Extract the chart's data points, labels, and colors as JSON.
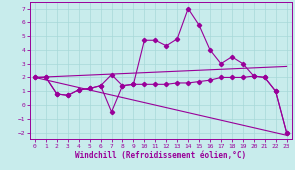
{
  "xlabel": "Windchill (Refroidissement éolien,°C)",
  "background_color": "#c8ecec",
  "grid_color": "#a8d8d8",
  "line_color": "#990099",
  "xlim": [
    -0.5,
    23.5
  ],
  "ylim": [
    -2.5,
    7.5
  ],
  "xticks": [
    0,
    1,
    2,
    3,
    4,
    5,
    6,
    7,
    8,
    9,
    10,
    11,
    12,
    13,
    14,
    15,
    16,
    17,
    18,
    19,
    20,
    21,
    22,
    23
  ],
  "yticks": [
    -2,
    -1,
    0,
    1,
    2,
    3,
    4,
    5,
    6,
    7
  ],
  "line1_x": [
    0,
    1,
    2,
    3,
    4,
    5,
    6,
    7,
    8,
    9,
    10,
    11,
    12,
    13,
    14,
    15,
    16,
    17,
    18,
    19,
    20,
    21,
    22,
    23
  ],
  "line1_y": [
    2.0,
    2.0,
    0.8,
    0.7,
    1.1,
    1.2,
    1.4,
    2.2,
    1.4,
    1.5,
    4.7,
    4.7,
    4.3,
    4.8,
    7.0,
    5.8,
    4.0,
    3.0,
    3.5,
    3.0,
    2.1,
    2.0,
    1.0,
    -2.0
  ],
  "line2_x": [
    0,
    1,
    2,
    3,
    4,
    5,
    6,
    7,
    8,
    9,
    10,
    11,
    12,
    13,
    14,
    15,
    16,
    17,
    18,
    19,
    20,
    21,
    22,
    23
  ],
  "line2_y": [
    2.0,
    2.0,
    0.8,
    0.7,
    1.1,
    1.2,
    1.4,
    -0.5,
    1.4,
    1.5,
    1.5,
    1.5,
    1.5,
    1.6,
    1.6,
    1.7,
    1.8,
    2.0,
    2.0,
    2.0,
    2.1,
    2.0,
    1.0,
    -2.0
  ],
  "line3_x": [
    0,
    23
  ],
  "line3_y": [
    2.0,
    -2.2
  ],
  "line4_x": [
    0,
    23
  ],
  "line4_y": [
    2.0,
    2.8
  ]
}
